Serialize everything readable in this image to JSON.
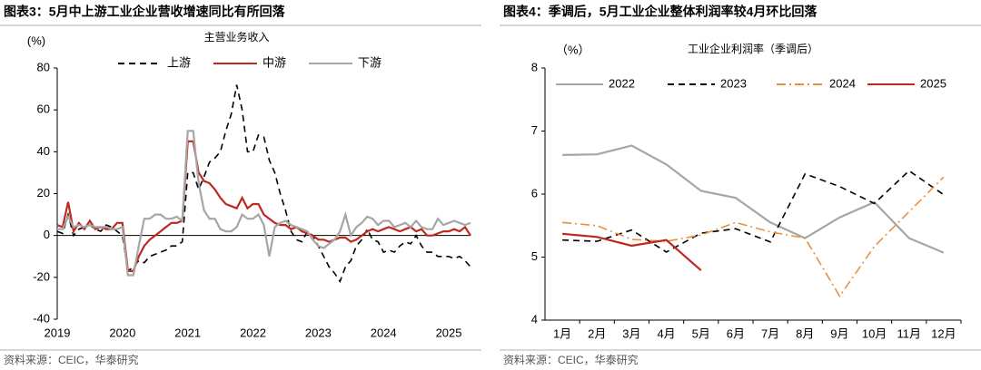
{
  "chart_data": [
    {
      "type": "line",
      "title": "图表3：5月中上游工业企业营收增速同比有所回落",
      "subtitle": "主营业务收入",
      "y_label": "(%)",
      "source": "资料来源：CEIC，华泰研究",
      "categories": [
        "2019",
        null,
        null,
        null,
        null,
        null,
        null,
        null,
        null,
        null,
        null,
        null,
        "2020",
        null,
        null,
        null,
        null,
        null,
        null,
        null,
        null,
        null,
        null,
        null,
        "2021",
        null,
        null,
        null,
        null,
        null,
        null,
        null,
        null,
        null,
        null,
        null,
        "2022",
        null,
        null,
        null,
        null,
        null,
        null,
        null,
        null,
        null,
        null,
        null,
        "2023",
        null,
        null,
        null,
        null,
        null,
        null,
        null,
        null,
        null,
        null,
        null,
        "2024",
        null,
        null,
        null,
        null,
        null,
        null,
        null,
        null,
        null,
        null,
        null,
        "2025",
        null,
        null,
        null,
        null
      ],
      "series": [
        {
          "name": "上游",
          "color": "#000000",
          "dash": "dashed",
          "values": [
            2,
            1,
            10,
            0,
            3,
            4,
            5,
            3,
            2,
            5,
            4,
            2,
            0,
            -17,
            -15,
            -12,
            -13,
            -10,
            -9,
            -8,
            -7,
            -5,
            -5,
            -3,
            30,
            30,
            22,
            28,
            35,
            37,
            40,
            50,
            58,
            72,
            60,
            40,
            40,
            48,
            47,
            36,
            30,
            20,
            12,
            2,
            -2,
            -3,
            2,
            0,
            -5,
            -10,
            -15,
            -18,
            -22,
            -15,
            -12,
            -5,
            -2,
            3,
            -2,
            -3,
            -8,
            -7,
            -8,
            -5,
            -3,
            -4,
            0,
            -5,
            -8,
            -8,
            -10,
            -10,
            -10,
            -11,
            -10,
            -12,
            -15
          ]
        },
        {
          "name": "中游",
          "color": "#c0281e",
          "dash": "solid",
          "values": [
            5,
            4,
            16,
            2,
            6,
            3,
            7,
            3,
            4,
            3,
            3,
            6,
            6,
            -17,
            -17,
            -10,
            -5,
            -2,
            0,
            2,
            4,
            6,
            6,
            7,
            45,
            45,
            30,
            26,
            25,
            22,
            18,
            15,
            14,
            13,
            18,
            13,
            15,
            15,
            10,
            8,
            6,
            5,
            5,
            3,
            4,
            2,
            1,
            0,
            -2,
            -2,
            -3,
            -2,
            -1,
            -1,
            -3,
            -2,
            0,
            2,
            3,
            2,
            3,
            4,
            3,
            2,
            3,
            4,
            2,
            3,
            0,
            0,
            1,
            2,
            2,
            3,
            2,
            4,
            0
          ]
        },
        {
          "name": "下游",
          "color": "#a6a6a6",
          "dash": "solid",
          "values": [
            3,
            3,
            9,
            4,
            5,
            4,
            5,
            4,
            4,
            4,
            3,
            3,
            4,
            -19,
            -19,
            -5,
            8,
            8,
            10,
            10,
            8,
            8,
            9,
            7,
            50,
            50,
            25,
            12,
            8,
            8,
            3,
            2,
            2,
            4,
            10,
            8,
            8,
            10,
            5,
            -10,
            4,
            6,
            7,
            5,
            4,
            3,
            2,
            -2,
            -5,
            -6,
            -4,
            -2,
            2,
            10,
            0,
            4,
            6,
            9,
            8,
            5,
            7,
            7,
            4,
            5,
            6,
            4,
            7,
            4,
            3,
            3,
            8,
            5,
            6,
            7,
            6,
            5,
            6
          ]
        }
      ],
      "ylim": [
        -40,
        80
      ],
      "yticks": [
        -40,
        -20,
        0,
        20,
        40,
        60,
        80
      ],
      "legend": "top"
    },
    {
      "type": "line",
      "title": "图表4：季调后，5月工业企业整体利润率较4月环比回落",
      "subtitle": "工业企业利润率（季调后）",
      "y_label": "（%）",
      "source": "资料来源：CEIC，华泰研究",
      "categories": [
        "1月",
        "2月",
        "3月",
        "4月",
        "5月",
        "6月",
        "7月",
        "8月",
        "9月",
        "10月",
        "11月",
        "12月"
      ],
      "series": [
        {
          "name": "2022",
          "color": "#a6a6a6",
          "dash": "solid",
          "values": [
            6.62,
            6.63,
            6.77,
            6.47,
            6.05,
            5.94,
            5.55,
            5.3,
            5.63,
            5.87,
            5.3,
            5.07
          ]
        },
        {
          "name": "2023",
          "color": "#000000",
          "dash": "dashed",
          "values": [
            5.27,
            5.25,
            5.43,
            5.08,
            5.38,
            5.45,
            5.24,
            6.32,
            6.12,
            5.85,
            6.37,
            5.99
          ]
        },
        {
          "name": "2024",
          "color": "#e8913c",
          "dash": "dashdot",
          "values": [
            5.55,
            5.5,
            5.28,
            5.25,
            5.35,
            5.55,
            5.4,
            5.3,
            4.38,
            5.17,
            5.72,
            6.27
          ]
        },
        {
          "name": "2025",
          "color": "#c0281e",
          "dash": "solid",
          "values": [
            5.37,
            5.32,
            5.18,
            5.27,
            4.79,
            null,
            null,
            null,
            null,
            null,
            null,
            null
          ]
        }
      ],
      "ylim": [
        4,
        8
      ],
      "yticks": [
        4,
        5,
        6,
        7,
        8
      ],
      "legend": "top-left"
    }
  ]
}
